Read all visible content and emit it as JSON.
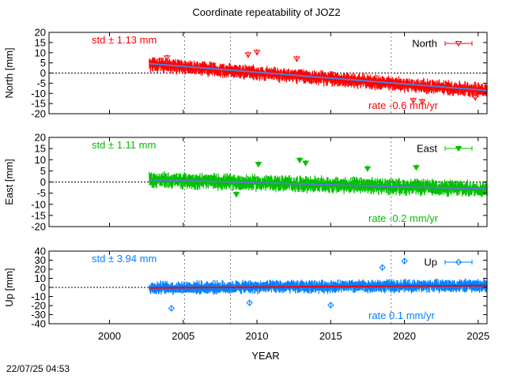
{
  "chart_data": {
    "title": "Coordinate repeatability of JOZ2",
    "xlabel": "YEAR",
    "xlim": [
      1995.9,
      2025.6
    ],
    "xticks": [
      2000,
      2005,
      2010,
      2015,
      2020,
      2025
    ],
    "vertical_gridlines": [
      2005.1,
      2008.2,
      2019.1
    ],
    "data_start": 2002.7,
    "data_end": 2025.6,
    "panels": [
      {
        "id": "north",
        "type": "scatter",
        "ylabel": "North [mm]",
        "ylim": [
          -20,
          20
        ],
        "yticks": [
          20,
          15,
          10,
          5,
          0,
          -5,
          -10,
          -15,
          -20
        ],
        "legend": "North",
        "legend_position": "top-right",
        "std_label": "std ± 1.13 mm",
        "rate_label": "rate -0.6 mm/yr",
        "color": "#ff0000",
        "trend_color": "#5b7bd5",
        "marker": "triangle-down-open",
        "trend": [
          [
            2002.7,
            4.6
          ],
          [
            2025.6,
            -8.6
          ]
        ],
        "samples": [
          [
            2003,
            4.2
          ],
          [
            2005,
            3.0
          ],
          [
            2008,
            1.3
          ],
          [
            2010,
            0.1
          ],
          [
            2013,
            -1.6
          ],
          [
            2016,
            -3.4
          ],
          [
            2019,
            -5.1
          ],
          [
            2022,
            -6.8
          ],
          [
            2025,
            -8.2
          ]
        ],
        "outliers": [
          [
            2003.9,
            7.5
          ],
          [
            2009.4,
            9.0
          ],
          [
            2010.0,
            10.2
          ],
          [
            2012.7,
            7.0
          ],
          [
            2020.6,
            -13.5
          ],
          [
            2021.2,
            -14.0
          ],
          [
            2024.8,
            -12.0
          ]
        ]
      },
      {
        "id": "east",
        "type": "scatter",
        "ylabel": "East [mm]",
        "ylim": [
          -20,
          20
        ],
        "yticks": [
          20,
          15,
          10,
          5,
          0,
          -5,
          -10,
          -15,
          -20
        ],
        "legend": "East",
        "legend_position": "top-right",
        "std_label": "std ± 1.11 mm",
        "rate_label": "rate -0.2 mm/yr",
        "color": "#00c000",
        "trend_color": "#5b7bd5",
        "marker": "triangle-down-filled",
        "trend": [
          [
            2002.7,
            1.0
          ],
          [
            2025.6,
            -3.2
          ]
        ],
        "samples": [
          [
            2003,
            0.9
          ],
          [
            2006,
            0.4
          ],
          [
            2009,
            -0.2
          ],
          [
            2012,
            -0.7
          ],
          [
            2015,
            -1.3
          ],
          [
            2018,
            -1.8
          ],
          [
            2021,
            -2.4
          ],
          [
            2025,
            -3.1
          ]
        ],
        "outliers": [
          [
            2012.9,
            9.8
          ],
          [
            2013.3,
            8.5
          ],
          [
            2010.1,
            8.0
          ],
          [
            2017.5,
            6.0
          ],
          [
            2020.8,
            6.5
          ],
          [
            2008.6,
            -5.5
          ]
        ]
      },
      {
        "id": "up",
        "type": "scatter",
        "ylabel": "Up [mm]",
        "ylim": [
          -40,
          40
        ],
        "yticks": [
          40,
          30,
          20,
          10,
          0,
          -10,
          -20,
          -30,
          -40
        ],
        "legend": "Up",
        "legend_position": "top-right",
        "std_label": "std ± 3.94 mm",
        "rate_label": "rate 0.1 mm/yr",
        "color": "#0080ff",
        "trend_color": "#ff0000",
        "marker": "diamond-open",
        "trend": [
          [
            2002.7,
            -0.5
          ],
          [
            2025.6,
            2.0
          ]
        ],
        "samples": [
          [
            2003,
            -0.4
          ],
          [
            2007,
            0.1
          ],
          [
            2011,
            0.5
          ],
          [
            2015,
            1.0
          ],
          [
            2019,
            1.4
          ],
          [
            2023,
            1.8
          ]
        ],
        "outliers": [
          [
            2020.0,
            29.0
          ],
          [
            2015.0,
            -19.5
          ],
          [
            2009.5,
            -17.0
          ],
          [
            2018.5,
            22.0
          ],
          [
            2004.2,
            -23.0
          ]
        ]
      }
    ]
  },
  "timestamp": "22/07/25 04:53"
}
